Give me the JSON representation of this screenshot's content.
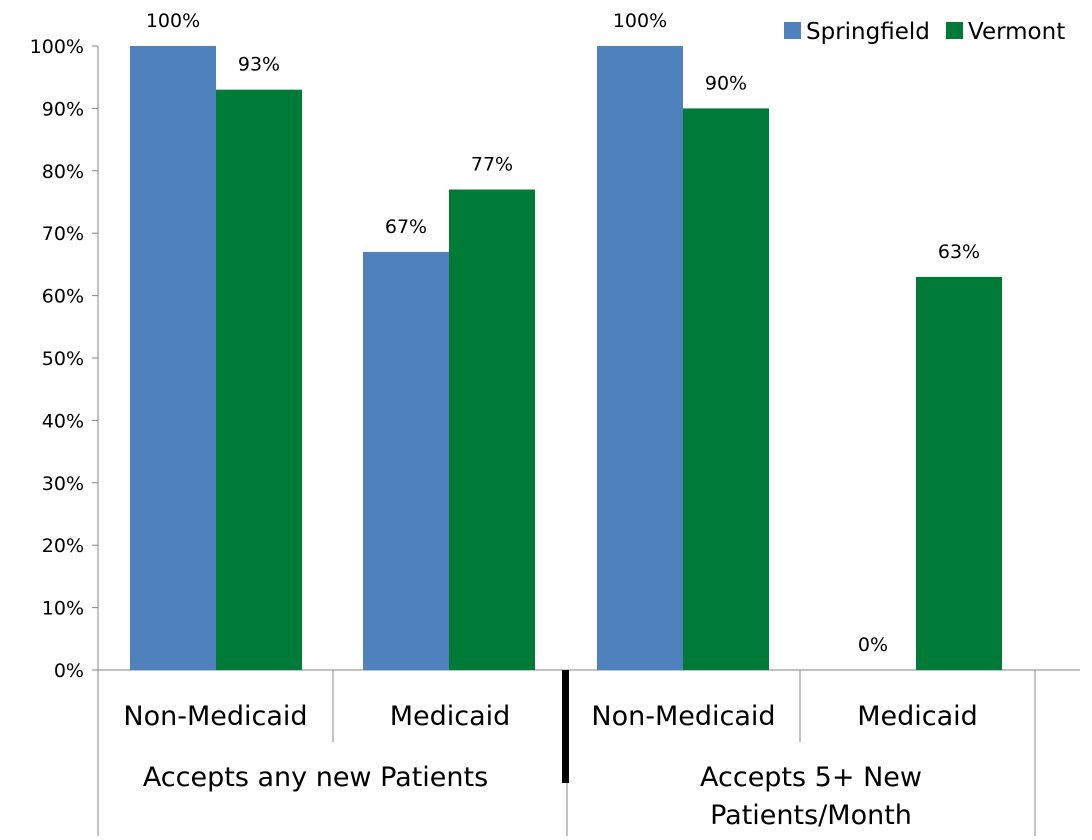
{
  "chart_data": {
    "type": "bar",
    "title": "",
    "xlabel": "",
    "ylabel": "",
    "ylim": [
      0,
      100
    ],
    "yticks": [
      "0%",
      "10%",
      "20%",
      "30%",
      "40%",
      "50%",
      "60%",
      "70%",
      "80%",
      "90%",
      "100%"
    ],
    "groups": [
      {
        "label": "Accepts any new Patients",
        "categories": [
          "Non-Medicaid",
          "Medicaid"
        ]
      },
      {
        "label": "Accepts 5+ New Patients/Month",
        "label_lines": [
          "Accepts 5+ New",
          "Patients/Month"
        ],
        "categories": [
          "Non-Medicaid",
          "Medicaid"
        ]
      }
    ],
    "categories": [
      "Non-Medicaid",
      "Medicaid",
      "Non-Medicaid",
      "Medicaid"
    ],
    "series": [
      {
        "name": "Springfield",
        "color": "#4f81bd",
        "values": [
          100,
          67,
          100,
          0
        ],
        "labels": [
          "100%",
          "67%",
          "100%",
          "0%"
        ]
      },
      {
        "name": "Vermont",
        "color": "#007a37",
        "values": [
          93,
          77,
          90,
          63
        ],
        "labels": [
          "93%",
          "77%",
          "90%",
          "63%"
        ]
      }
    ],
    "legend_position": "top-right",
    "grid": false
  }
}
